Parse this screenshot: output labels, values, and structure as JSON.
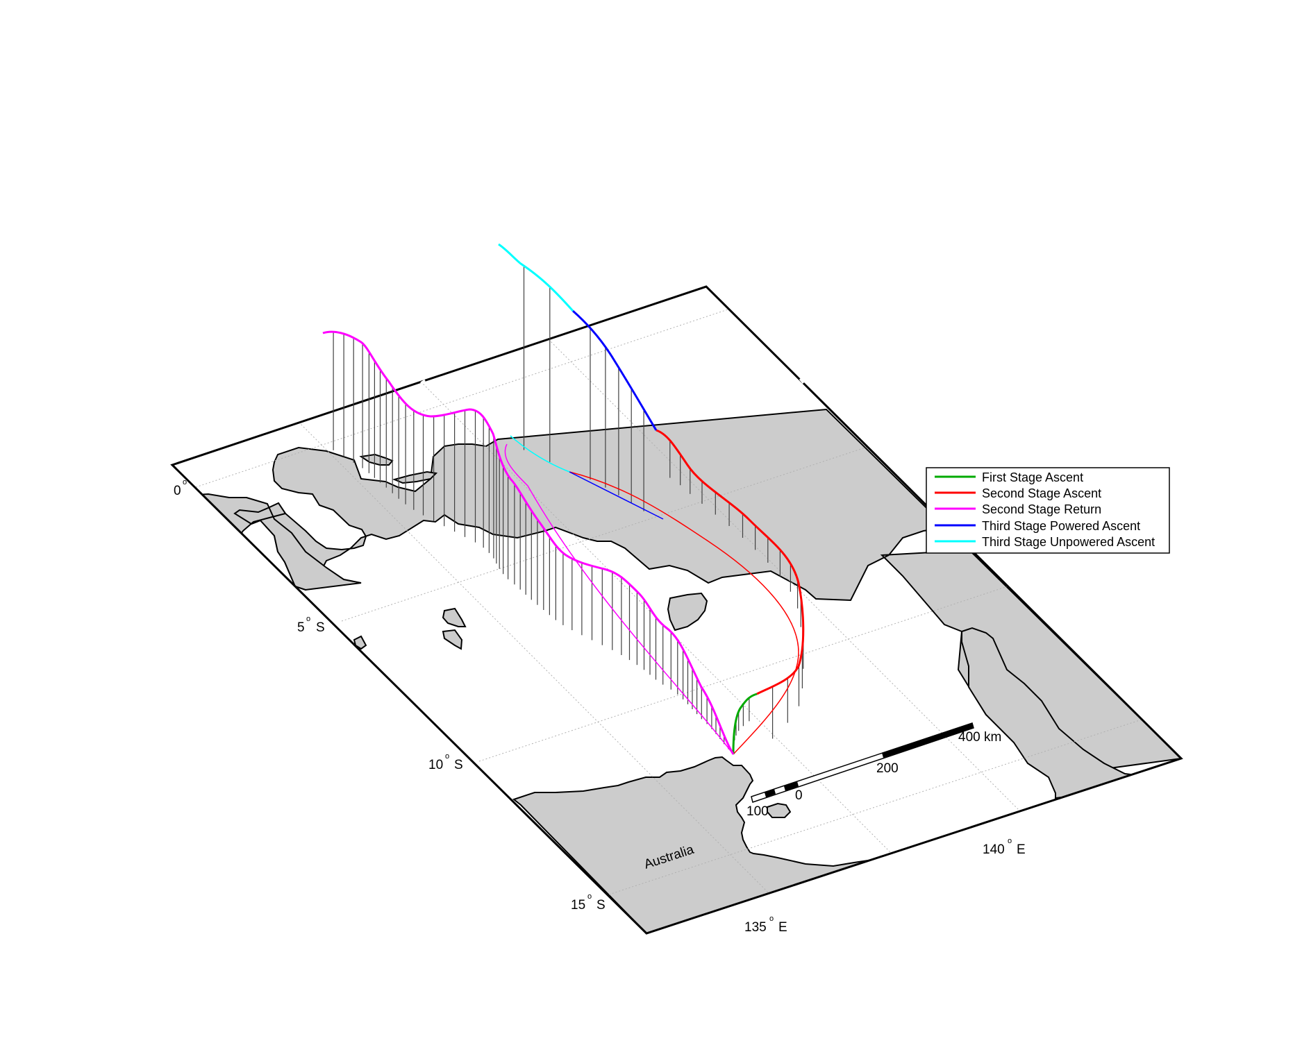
{
  "map": {
    "latitude_labels": [
      {
        "value": "0",
        "hemi": ""
      },
      {
        "value": "5",
        "hemi": "S"
      },
      {
        "value": "10",
        "hemi": "S"
      },
      {
        "value": "15",
        "hemi": "S"
      }
    ],
    "longitude_labels": [
      {
        "value": "135",
        "hemi": "E"
      },
      {
        "value": "140",
        "hemi": "E"
      }
    ],
    "place_label": "Australia",
    "degree_symbol": "o",
    "scale_bar": {
      "labels": [
        "100",
        "0",
        "200",
        "400 km"
      ]
    },
    "colors": {
      "land": "#cccccc",
      "grid": "#b0b0b0",
      "drop_lines": "#404040"
    }
  },
  "legend": {
    "entries": [
      {
        "label": "First Stage Ascent",
        "color": "#00aa00"
      },
      {
        "label": "Second Stage Ascent",
        "color": "#ff0000"
      },
      {
        "label": "Second Stage Return",
        "color": "#ff00ff"
      },
      {
        "label": "Third Stage Powered Ascent",
        "color": "#0000ff"
      },
      {
        "label": "Third Stage Unpowered Ascent",
        "color": "#00ffff"
      }
    ]
  }
}
